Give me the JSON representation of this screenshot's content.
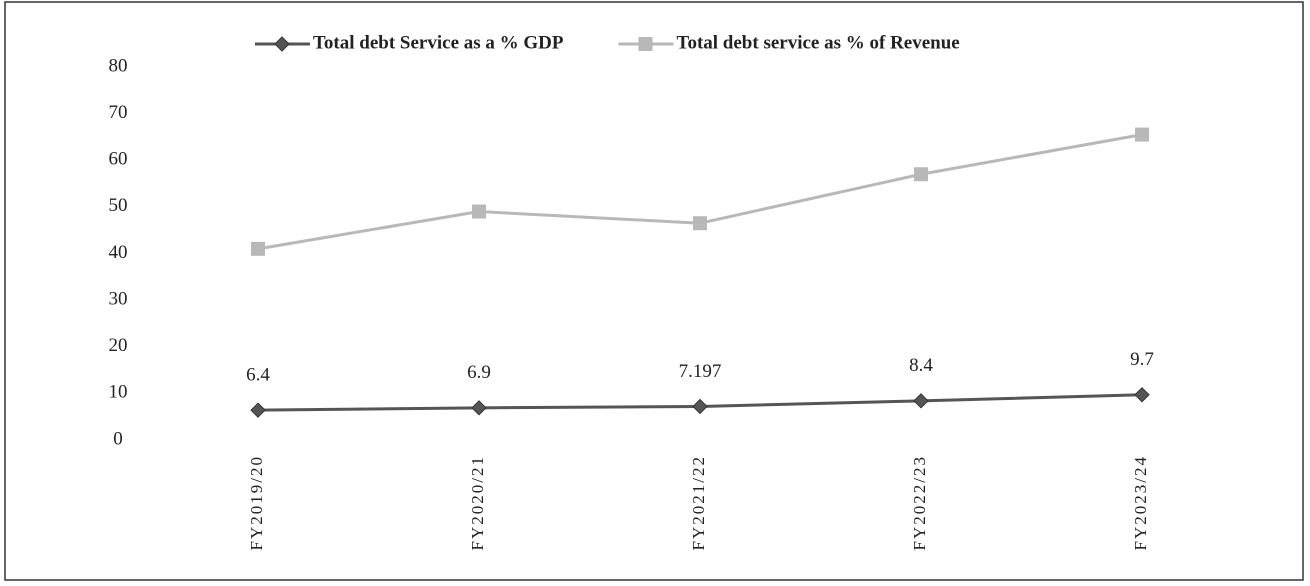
{
  "chart_data": {
    "type": "line",
    "categories": [
      "FY2019/20",
      "FY2020/21",
      "FY2021/22",
      "FY2022/23",
      "FY2023/24"
    ],
    "series": [
      {
        "name": "Total debt Service as a % GDP",
        "color": "#555555",
        "values": [
          6.4,
          6.9,
          7.197,
          8.4,
          9.7
        ],
        "marker": "diamond",
        "data_labels": true
      },
      {
        "name": "Total debt service as % of Revenue",
        "color": "#b8b8b8",
        "values": [
          41,
          49,
          46.5,
          57,
          65.5
        ],
        "marker": "square",
        "data_labels": false
      }
    ],
    "ylim": [
      0,
      80
    ],
    "yticks": [
      0,
      10,
      20,
      30,
      40,
      50,
      60,
      70,
      80
    ],
    "grid": false,
    "legend": "top"
  }
}
